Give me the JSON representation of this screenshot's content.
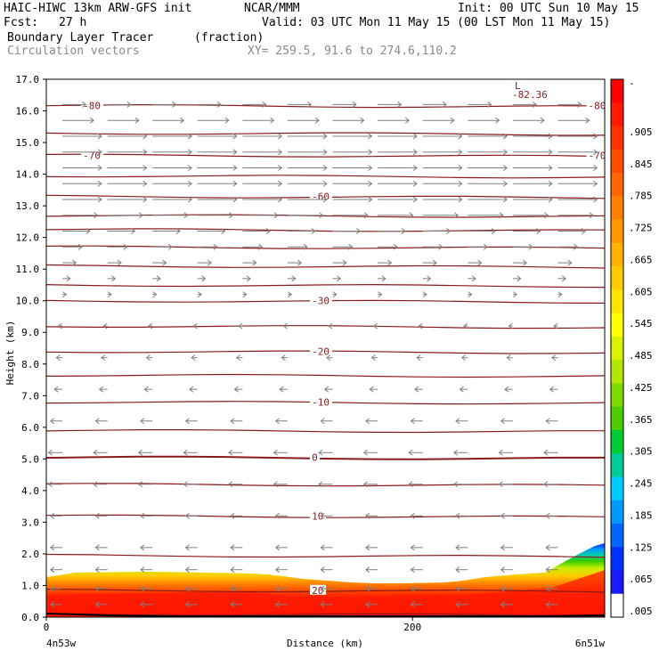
{
  "header": {
    "model": "HAIC-HIWC 13km ARW-GFS init",
    "org": "NCAR/MMM",
    "init": "Init: 00 UTC Sun 10 May 15",
    "fcst_label": "Fcst:",
    "fcst_value": "27 h",
    "valid": "Valid: 03 UTC Mon 11 May 15 (00 LST Mon 11 May 15)",
    "field": "Boundary Layer Tracer",
    "units": "(fraction)",
    "vectors": "Circulation vectors",
    "xy": "XY= 259.5, 91.6 to 274.6,110.2"
  },
  "colors": {
    "contour": "#8b1a1a",
    "vector": "#808080",
    "text_gray": "#8a8a8a"
  },
  "chart_data": {
    "type": "heatmap",
    "title": "Boundary Layer Tracer",
    "xlabel": "Distance (km)",
    "ylabel": "Height (km)",
    "xlim": [
      0,
      305
    ],
    "ylim": [
      0,
      17
    ],
    "x_ticks": [
      0,
      200
    ],
    "x_tick_labels": [
      "0",
      "200"
    ],
    "x_end_labels": [
      "4n53w",
      "6n51w"
    ],
    "y_ticks": [
      0,
      1,
      2,
      3,
      4,
      5,
      6,
      7,
      8,
      9,
      10,
      11,
      12,
      13,
      14,
      15,
      16,
      17
    ],
    "y_tick_labels": [
      "0.0",
      "1.0",
      "2.0",
      "3.0",
      "4.0",
      "5.0",
      "6.0",
      "7.0",
      "8.0",
      "9.0",
      "10.0",
      "11.0",
      "12.0",
      "13.0",
      "14.0",
      "15.0",
      "16.0",
      "17.0"
    ],
    "colorbar": {
      "labels": [
        "-",
        ".905",
        ".845",
        ".785",
        ".725",
        ".665",
        ".605",
        ".545",
        ".485",
        ".425",
        ".365",
        ".305",
        ".245",
        ".185",
        ".125",
        ".065",
        ".005"
      ],
      "colors": [
        "#ff0000",
        "#ff1a00",
        "#ff3300",
        "#ff4d00",
        "#ff6600",
        "#ff8000",
        "#ff9900",
        "#ffb300",
        "#ffcc00",
        "#ffe600",
        "#ffff00",
        "#d9f200",
        "#b3e600",
        "#80d900",
        "#4dcc00",
        "#00cc33",
        "#00cc99",
        "#00ccff",
        "#0099ff",
        "#0066ff",
        "#0033ff",
        "#1a1aff",
        "#ffffff"
      ]
    },
    "temperature_contours": [
      {
        "label": "-80",
        "height_km": 16.17
      },
      {
        "label": "-70",
        "height_km": 14.6
      },
      {
        "label": "-60",
        "height_km": 13.3
      },
      {
        "label": "-30",
        "height_km": 10.0
      },
      {
        "label": "-20",
        "height_km": 8.4
      },
      {
        "label": "-10",
        "height_km": 6.8
      },
      {
        "label": "0",
        "height_km": 5.05
      },
      {
        "label": "10",
        "height_km": 3.2
      },
      {
        "label": "20",
        "height_km": 0.85
      }
    ],
    "unlabeled_contour_heights_km": [
      15.3,
      13.95,
      12.7,
      12.25,
      11.7,
      11.1,
      10.5,
      9.2,
      7.65,
      5.9,
      4.2,
      1.95,
      0.1
    ],
    "minimum_label": {
      "marker": "L",
      "value": "-82.36",
      "x_km": 270,
      "height_km": 16.7
    },
    "wind_vectors": [
      {
        "height_km": 16.2,
        "dir": 1,
        "len": 0.6
      },
      {
        "height_km": 15.7,
        "dir": 1,
        "len": 0.8
      },
      {
        "height_km": 15.2,
        "dir": 1,
        "len": 1.0
      },
      {
        "height_km": 14.7,
        "dir": 1,
        "len": 1.0
      },
      {
        "height_km": 14.2,
        "dir": 1,
        "len": 1.0
      },
      {
        "height_km": 13.7,
        "dir": 1,
        "len": 1.0
      },
      {
        "height_km": 13.2,
        "dir": 1,
        "len": 1.0
      },
      {
        "height_km": 12.7,
        "dir": 1,
        "len": 0.9
      },
      {
        "height_km": 12.2,
        "dir": 1,
        "len": 0.7
      },
      {
        "height_km": 11.7,
        "dir": 1,
        "len": 0.5
      },
      {
        "height_km": 11.2,
        "dir": 1,
        "len": 0.35
      },
      {
        "height_km": 10.7,
        "dir": 1,
        "len": 0.2
      },
      {
        "height_km": 10.2,
        "dir": 1,
        "len": 0.1
      },
      {
        "height_km": 9.2,
        "dir": -1,
        "len": 0.1
      },
      {
        "height_km": 8.2,
        "dir": -1,
        "len": 0.15
      },
      {
        "height_km": 7.2,
        "dir": -1,
        "len": 0.2
      },
      {
        "height_km": 6.2,
        "dir": -1,
        "len": 0.3
      },
      {
        "height_km": 5.2,
        "dir": -1,
        "len": 0.35
      },
      {
        "height_km": 4.2,
        "dir": -1,
        "len": 0.35
      },
      {
        "height_km": 3.2,
        "dir": -1,
        "len": 0.3
      },
      {
        "height_km": 2.2,
        "dir": -1,
        "len": 0.3
      },
      {
        "height_km": 1.5,
        "dir": -1,
        "len": 0.3
      },
      {
        "height_km": 0.9,
        "dir": -1,
        "len": 0.3
      },
      {
        "height_km": 0.4,
        "dir": -1,
        "len": 0.3
      }
    ]
  }
}
